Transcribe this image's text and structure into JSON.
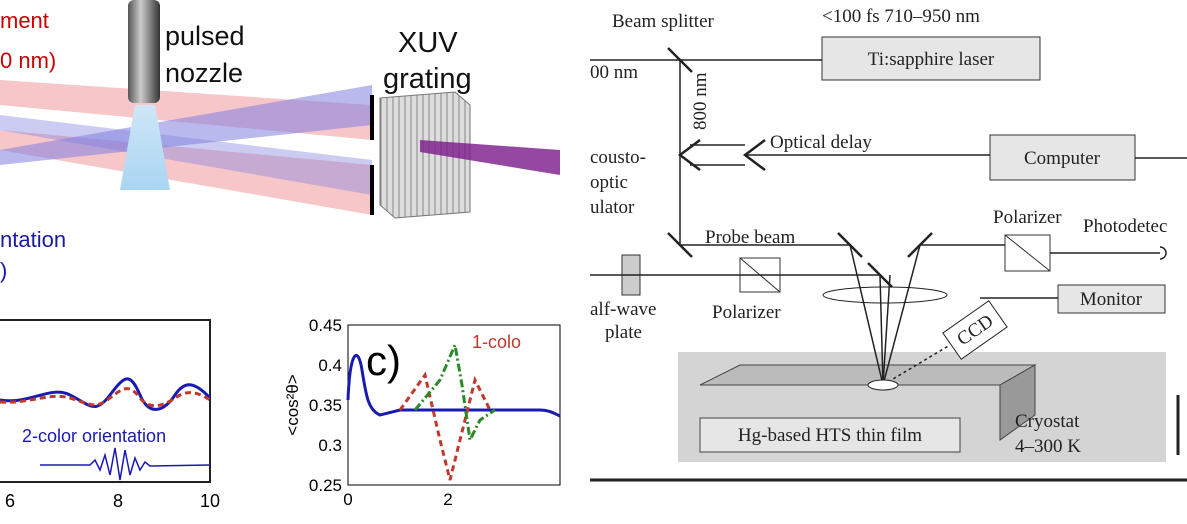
{
  "left": {
    "beam_label": [
      "ment",
      "0 nm)"
    ],
    "nozzle_label": [
      "pulsed",
      "nozzle"
    ],
    "grating_label": [
      "XUV",
      "grating"
    ],
    "orientation_label": [
      "ntation",
      ")"
    ],
    "plot_b": {
      "curve_label": "2-color orientation",
      "xticks": [
        "6",
        "8",
        "10"
      ]
    },
    "plot_c": {
      "panel_label": "c)",
      "curve_label": "1-colo",
      "ylabel": "<cos²θ>",
      "yticks": [
        "0.45",
        "0.4",
        "0.35",
        "0.3",
        "0.25"
      ],
      "xticks": [
        "0",
        "2"
      ]
    }
  },
  "right": {
    "spec": "<100 fs 710–950 nm",
    "beam_splitter": "Beam splitter",
    "laser": "Ti:sapphire laser",
    "wavelength_left": "00 nm",
    "wavelength_vertical": "800 nm",
    "modulator": [
      "cousto-",
      "optic",
      "ulator"
    ],
    "optical_delay": "Optical delay",
    "computer": "Computer",
    "polarizer_top": "Polarizer",
    "photodetector": "Photodetec",
    "probe_beam": "Probe beam",
    "half_wave": [
      "alf-wave",
      "plate"
    ],
    "polarizer_bottom": "Polarizer",
    "monitor": "Monitor",
    "ccd": "CCD",
    "film": "Hg-based HTS thin film",
    "cryostat": [
      "Cryostat",
      "4–300 K"
    ]
  }
}
